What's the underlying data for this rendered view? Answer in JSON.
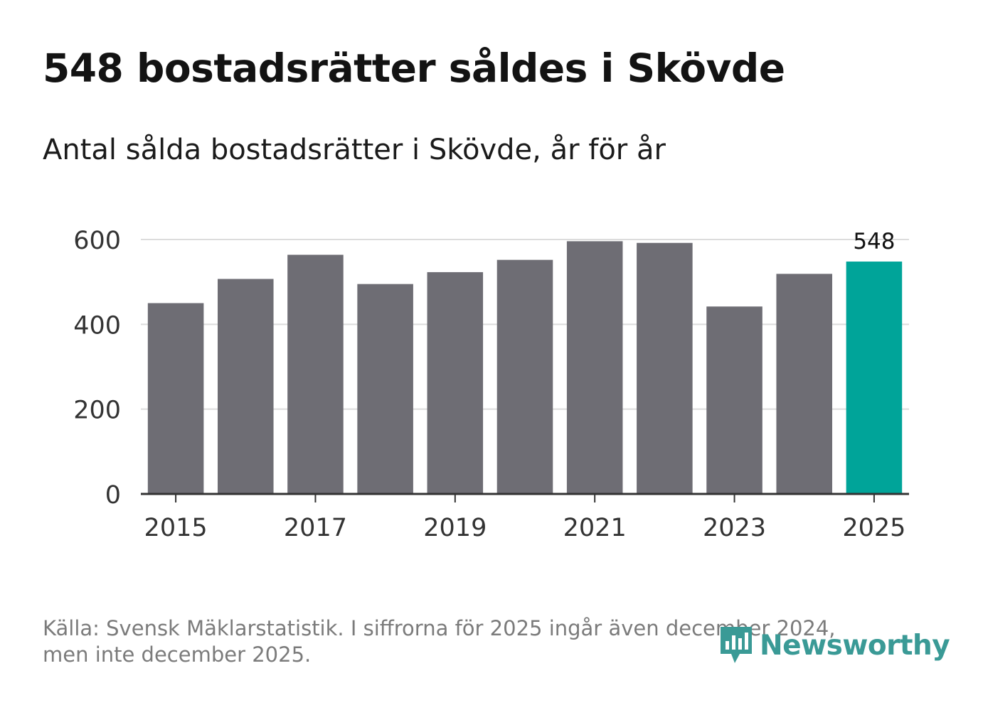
{
  "header": {
    "title": "548 bostadsrätter såldes i Skövde",
    "subtitle": "Antal sålda bostadsrätter i Skövde, år för år"
  },
  "footer": {
    "source_line1": "Källa: Svensk Mäklarstatistik. I siffrorna för 2025 ingår även december 2024,",
    "source_line2": "men inte december 2025."
  },
  "brand": {
    "name": "Newsworthy"
  },
  "colors": {
    "bar": "#6e6d74",
    "highlight": "#00a499",
    "brand": "#3a9a96"
  },
  "chart_data": {
    "type": "bar",
    "title": "548 bostadsrätter såldes i Skövde",
    "subtitle": "Antal sålda bostadsrätter i Skövde, år för år",
    "xlabel": "",
    "ylabel": "",
    "categories": [
      "2015",
      "2016",
      "2017",
      "2018",
      "2019",
      "2020",
      "2021",
      "2022",
      "2023",
      "2024",
      "2025"
    ],
    "values": [
      450,
      507,
      564,
      495,
      523,
      552,
      596,
      592,
      442,
      519,
      548
    ],
    "x_tick_labels": [
      "2015",
      "2017",
      "2019",
      "2021",
      "2023",
      "2025"
    ],
    "y_ticks": [
      0,
      200,
      400,
      600
    ],
    "ylim": [
      0,
      600
    ],
    "grid": true,
    "highlight_index": 10,
    "highlight_label": "548"
  }
}
